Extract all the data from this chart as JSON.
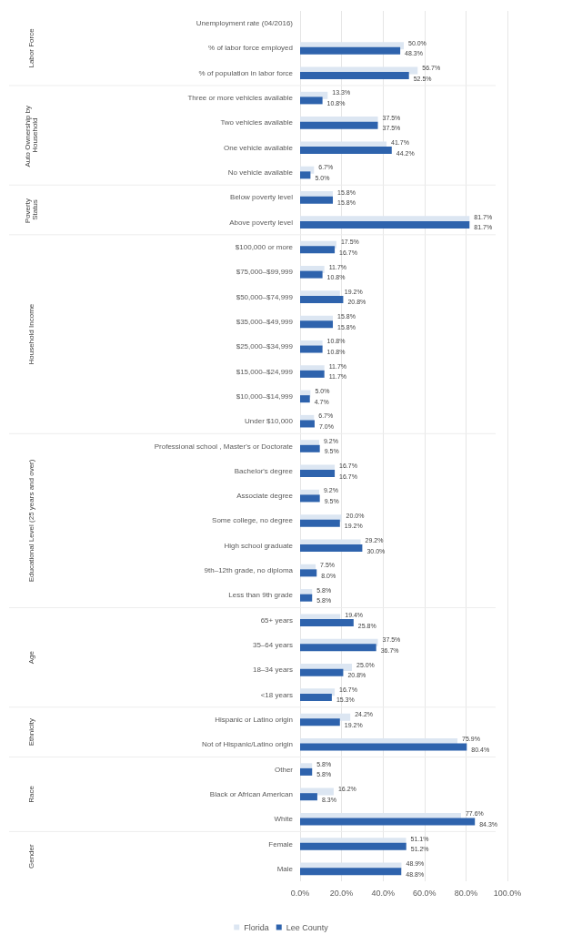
{
  "chart_data": {
    "type": "bar",
    "orientation": "horizontal",
    "categories": [
      "Unemployment rate (04/2016)",
      "% of labor force employed",
      "% of population in labor force",
      "Three or more vehicles available",
      "Two vehicles available",
      "One vehicle available",
      "No vehicle available",
      "Below poverty level",
      "Above poverty level",
      "$100,000 or more",
      "$75,000–$99,999",
      "$50,000–$74,999",
      "$35,000–$49,999",
      "$25,000–$34,999",
      "$15,000–$24,999",
      "$10,000–$14,999",
      "Under $10,000",
      "Professional school , Master's or Doctorate",
      "Bachelor's degree",
      "Associate degree",
      "Some college, no degree",
      "High school graduate",
      "9th–12th grade, no diploma",
      "Less than 9th grade",
      "65+ years",
      "35–64 years",
      "18–34 years",
      "<18 years",
      "Hispanic or Latino origin",
      "Not of Hispanic/Latino origin",
      "Other",
      "Black or African American",
      "White",
      "Female",
      "Male"
    ],
    "series": [
      {
        "name": "Florida",
        "color": "#dce6f2",
        "values": [
          null,
          50.0,
          56.7,
          13.3,
          37.5,
          41.7,
          6.7,
          15.8,
          81.7,
          17.5,
          11.7,
          19.2,
          15.8,
          10.8,
          11.7,
          5.0,
          6.7,
          9.2,
          16.7,
          9.2,
          20.0,
          29.2,
          7.5,
          5.8,
          19.4,
          37.5,
          25.0,
          16.7,
          24.2,
          75.9,
          5.8,
          16.2,
          77.6,
          51.1,
          48.9
        ],
        "value_labels": [
          null,
          "50.0%",
          "56.7%",
          "13.3%",
          "37.5%",
          "41.7%",
          "6.7%",
          "15.8%",
          "81.7%",
          "17.5%",
          "11.7%",
          "19.2%",
          "15.8%",
          "10.8%",
          "11.7%",
          "5.0%",
          "6.7%",
          "9.2%",
          "16.7%",
          "9.2%",
          "20.0%",
          "29.2%",
          "7.5%",
          "5.8%",
          "19.4%",
          "37.5%",
          "25.0%",
          "16.7%",
          "24.2%",
          "75.9%",
          "5.8%",
          "16.2%",
          "77.6%",
          "51.1%",
          "48.9%"
        ]
      },
      {
        "name": "Lee County",
        "color": "#2e63ad",
        "values": [
          null,
          48.3,
          52.5,
          10.8,
          37.5,
          44.2,
          5.0,
          15.8,
          81.7,
          16.7,
          10.8,
          20.8,
          15.8,
          10.8,
          11.7,
          4.7,
          7.0,
          9.5,
          16.7,
          9.5,
          19.2,
          30.0,
          8.0,
          5.8,
          25.8,
          36.7,
          20.8,
          15.3,
          19.2,
          80.4,
          5.8,
          8.3,
          84.3,
          51.2,
          48.8
        ],
        "value_labels": [
          null,
          "48.3%",
          "52.5%",
          "10.8%",
          "37.5%",
          "44.2%",
          "5.0%",
          "15.8%",
          "81.7%",
          "16.7%",
          "10.8%",
          "20.8%",
          "15.8%",
          "10.8%",
          "11.7%",
          "4.7%",
          "7.0%",
          "9.5%",
          "16.7%",
          "9.5%",
          "19.2%",
          "30.0%",
          "8.0%",
          "5.8%",
          "25.8%",
          "36.7%",
          "20.8%",
          "15.3%",
          "19.2%",
          "80.4%",
          "5.8%",
          "8.3%",
          "84.3%",
          "51.2%",
          "48.8%"
        ]
      }
    ],
    "xlim": [
      0,
      100
    ],
    "xticks": [
      {
        "value": 0,
        "label": "0.0%"
      },
      {
        "value": 20,
        "label": "20.0%"
      },
      {
        "value": 40,
        "label": "40.0%"
      },
      {
        "value": 60,
        "label": "60.0%"
      },
      {
        "value": 80,
        "label": "80.0%"
      },
      {
        "value": 100,
        "label": "100.0%"
      }
    ],
    "grid": "x",
    "legend": "bottom",
    "annotations": [
      "Labor Force",
      "Auto Ownership by Household",
      "Poverty Status",
      "Household Income",
      "Educational Level (25 years and over)",
      "Age",
      "Ethnicity",
      "Race",
      "Gender"
    ]
  }
}
